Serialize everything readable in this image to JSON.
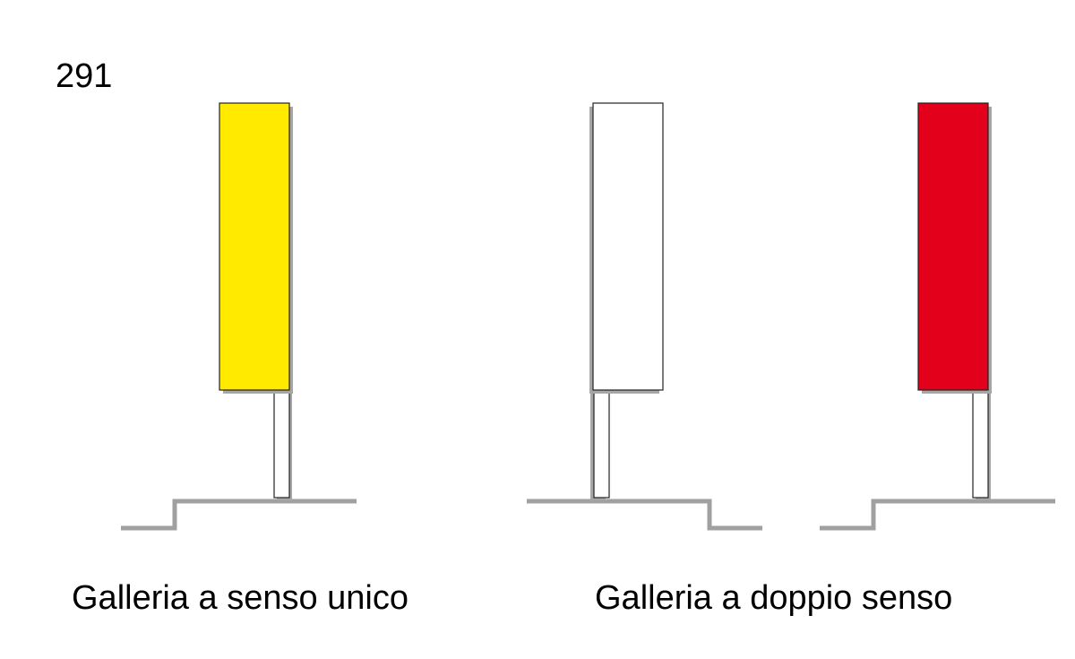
{
  "figure_number": "291",
  "captions": {
    "one_way": "Galleria a senso unico",
    "two_way": "Galleria a doppio senso"
  },
  "colors": {
    "yellow_panel": "#ffea00",
    "white_panel": "#ffffff",
    "red_panel": "#e2001a",
    "shadow": "#a6a6a6",
    "outline": "#222222",
    "ground": "#a0a0a0"
  }
}
